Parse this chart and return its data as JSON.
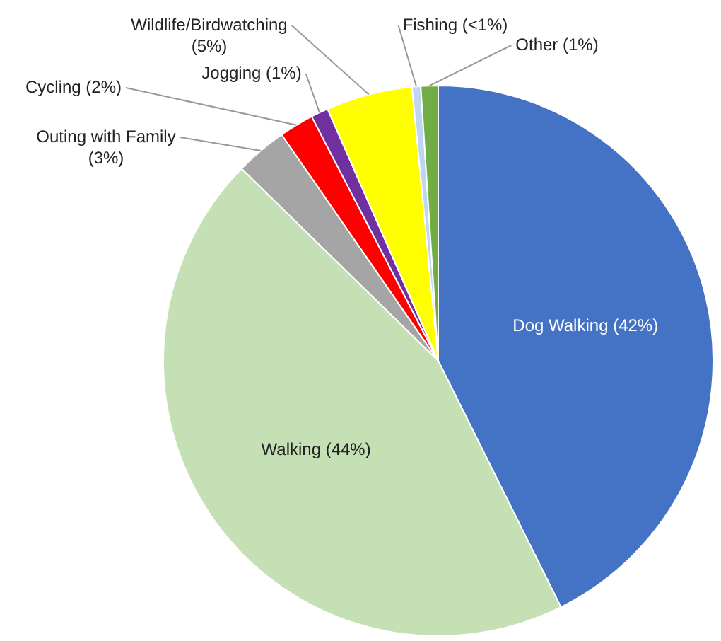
{
  "chart_data": {
    "type": "pie",
    "categories": [
      "Dog Walking",
      "Walking",
      "Outing with Family",
      "Cycling",
      "Jogging",
      "Wildlife/Birdwatching",
      "Fishing",
      "Other"
    ],
    "values": [
      42,
      44,
      3,
      2,
      1,
      5,
      0.5,
      1
    ],
    "value_labels": [
      "(42%)",
      "(44%)",
      "(3%)",
      "(2%)",
      "(1%)",
      "(5%)",
      "(<1%)",
      "(1%)"
    ],
    "colors": [
      "#4472c4",
      "#c5e0b4",
      "#a5a5a5",
      "#ff0000",
      "#7030a0",
      "#ffff00",
      "#bdd7ee",
      "#70ad47"
    ],
    "legend": false
  }
}
